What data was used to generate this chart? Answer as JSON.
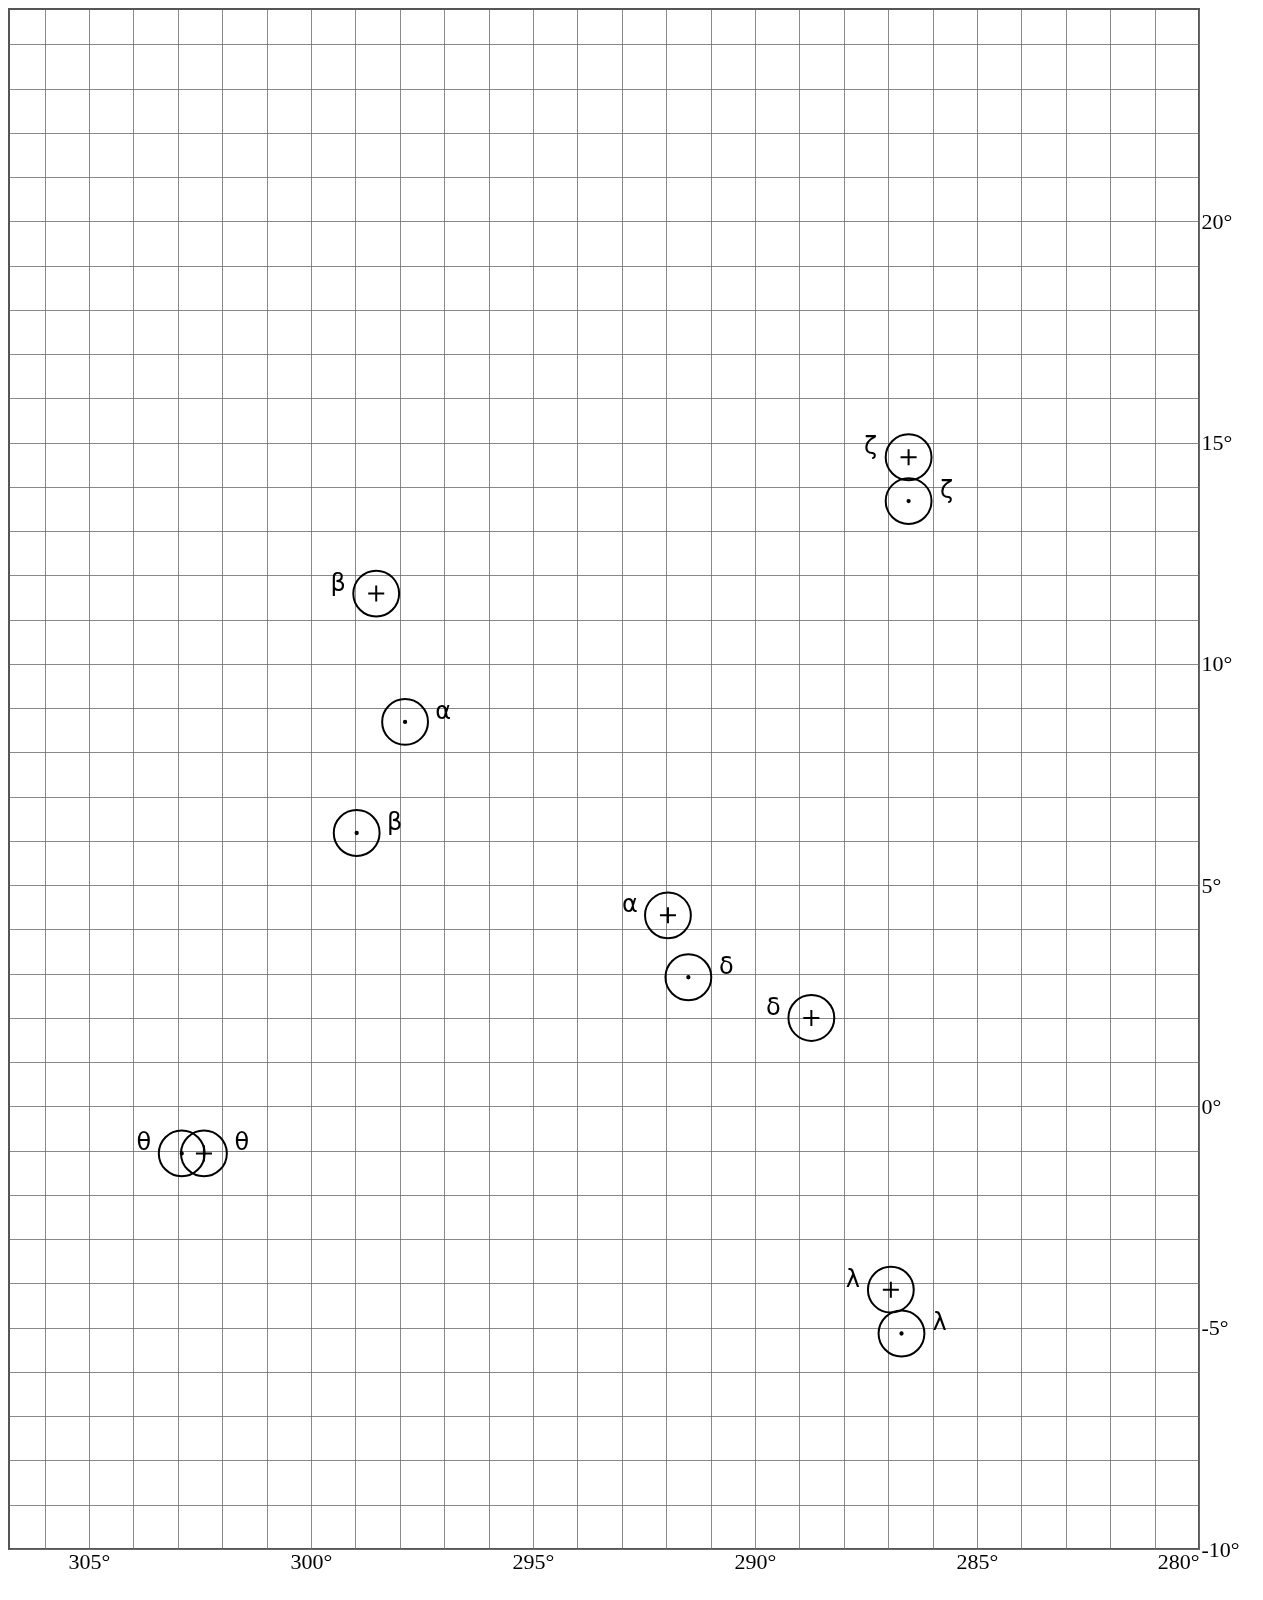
{
  "chart_data": {
    "type": "scatter",
    "xlim": [
      306.8,
      280
    ],
    "ylim": [
      -10,
      24.8
    ],
    "xticks": [
      {
        "value": 306,
        "label": null
      },
      {
        "value": 305,
        "label": "305°"
      },
      {
        "value": 304,
        "label": null
      },
      {
        "value": 303,
        "label": null
      },
      {
        "value": 302,
        "label": null
      },
      {
        "value": 301,
        "label": null
      },
      {
        "value": 300,
        "label": "300°"
      },
      {
        "value": 299,
        "label": null
      },
      {
        "value": 298,
        "label": null
      },
      {
        "value": 297,
        "label": null
      },
      {
        "value": 296,
        "label": null
      },
      {
        "value": 295,
        "label": "295°"
      },
      {
        "value": 294,
        "label": null
      },
      {
        "value": 293,
        "label": null
      },
      {
        "value": 292,
        "label": null
      },
      {
        "value": 291,
        "label": null
      },
      {
        "value": 290,
        "label": "290°"
      },
      {
        "value": 289,
        "label": null
      },
      {
        "value": 288,
        "label": null
      },
      {
        "value": 287,
        "label": null
      },
      {
        "value": 286,
        "label": null
      },
      {
        "value": 285,
        "label": "285°"
      },
      {
        "value": 284,
        "label": null
      },
      {
        "value": 283,
        "label": null
      },
      {
        "value": 282,
        "label": null
      },
      {
        "value": 281,
        "label": null
      },
      {
        "value": 280,
        "label": "280°"
      }
    ],
    "yticks": [
      {
        "value": -10,
        "label": "-10°"
      },
      {
        "value": -9,
        "label": null
      },
      {
        "value": -8,
        "label": null
      },
      {
        "value": -7,
        "label": null
      },
      {
        "value": -6,
        "label": null
      },
      {
        "value": -5,
        "label": "-5°"
      },
      {
        "value": -4,
        "label": null
      },
      {
        "value": -3,
        "label": null
      },
      {
        "value": -2,
        "label": null
      },
      {
        "value": -1,
        "label": null
      },
      {
        "value": 0,
        "label": "0°"
      },
      {
        "value": 1,
        "label": null
      },
      {
        "value": 2,
        "label": null
      },
      {
        "value": 3,
        "label": null
      },
      {
        "value": 4,
        "label": null
      },
      {
        "value": 5,
        "label": "5°"
      },
      {
        "value": 6,
        "label": null
      },
      {
        "value": 7,
        "label": null
      },
      {
        "value": 8,
        "label": null
      },
      {
        "value": 9,
        "label": null
      },
      {
        "value": 10,
        "label": "10°"
      },
      {
        "value": 11,
        "label": null
      },
      {
        "value": 12,
        "label": null
      },
      {
        "value": 13,
        "label": null
      },
      {
        "value": 14,
        "label": null
      },
      {
        "value": 15,
        "label": "15°"
      },
      {
        "value": 16,
        "label": null
      },
      {
        "value": 17,
        "label": null
      },
      {
        "value": 18,
        "label": null
      },
      {
        "value": 19,
        "label": null
      },
      {
        "value": 20,
        "label": "20°"
      },
      {
        "value": 21,
        "label": null
      },
      {
        "value": 22,
        "label": null
      },
      {
        "value": 23,
        "label": null
      },
      {
        "value": 24,
        "label": null
      }
    ],
    "grid": true,
    "series": [
      {
        "marker": "cross",
        "color": "#000000",
        "x": [
          286.54,
          298.53,
          291.96,
          288.73,
          302.41,
          286.94
        ],
        "values": [
          14.67,
          11.59,
          4.32,
          2.0,
          -1.06,
          -4.14
        ],
        "value_labels": [
          "ζ",
          "β",
          "α",
          "δ",
          "θ",
          "λ"
        ]
      },
      {
        "marker": "circle",
        "color": "#000000",
        "x": [
          286.54,
          297.88,
          298.97,
          291.5,
          302.91,
          286.7
        ],
        "values": [
          13.68,
          8.69,
          6.18,
          2.92,
          -1.06,
          -5.13
        ],
        "value_labels": [
          "ζ",
          "α",
          "β",
          "δ",
          "θ",
          "λ"
        ]
      }
    ]
  }
}
